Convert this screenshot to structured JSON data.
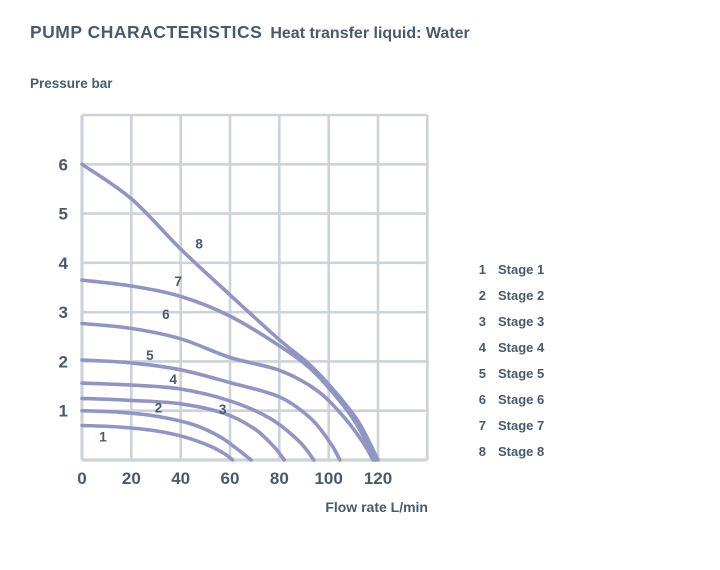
{
  "header": {
    "title": "PUMP CHARACTERISTICS",
    "subtitle": "Heat transfer liquid: Water"
  },
  "colors": {
    "ink": "#475b6c",
    "curve": "#9095c4",
    "grid": "#cdd3db",
    "background": "#ffffff"
  },
  "legend": {
    "items": [
      {
        "num": "1",
        "label": "Stage 1"
      },
      {
        "num": "2",
        "label": "Stage 2"
      },
      {
        "num": "3",
        "label": "Stage 3"
      },
      {
        "num": "4",
        "label": "Stage 4"
      },
      {
        "num": "5",
        "label": "Stage 5"
      },
      {
        "num": "6",
        "label": "Stage 6"
      },
      {
        "num": "7",
        "label": "Stage 7"
      },
      {
        "num": "8",
        "label": "Stage 8"
      }
    ]
  },
  "chart_data": {
    "type": "line",
    "title": "PUMP CHARACTERISTICS",
    "subtitle": "Heat transfer liquid: Water",
    "xlabel": "Flow rate L/min",
    "ylabel": "Pressure bar",
    "xlim": [
      0,
      140
    ],
    "ylim": [
      0,
      7
    ],
    "x_grid_step": 20,
    "y_grid_step": 1,
    "grid": true,
    "legend_position": "right",
    "xticks": [
      0,
      20,
      40,
      60,
      80,
      100,
      120
    ],
    "yticks": [
      1,
      2,
      3,
      4,
      5,
      6
    ],
    "series": [
      {
        "name": "Stage 1",
        "label": "1",
        "label_pos": [
          8.5,
          0.47
        ],
        "points": [
          [
            0,
            0.7
          ],
          [
            15,
            0.67
          ],
          [
            30,
            0.59
          ],
          [
            42,
            0.46
          ],
          [
            52,
            0.28
          ],
          [
            58,
            0.12
          ],
          [
            61,
            0
          ]
        ]
      },
      {
        "name": "Stage 2",
        "label": "2",
        "label_pos": [
          31,
          1.06
        ],
        "points": [
          [
            0,
            1.0
          ],
          [
            15,
            0.97
          ],
          [
            30,
            0.89
          ],
          [
            45,
            0.72
          ],
          [
            56,
            0.47
          ],
          [
            64,
            0.18
          ],
          [
            68.5,
            0
          ]
        ]
      },
      {
        "name": "Stage 3",
        "label": "3",
        "label_pos": [
          57,
          1.02
        ],
        "points": [
          [
            0,
            1.25
          ],
          [
            20,
            1.21
          ],
          [
            40,
            1.14
          ],
          [
            58,
            0.94
          ],
          [
            70,
            0.63
          ],
          [
            78,
            0.26
          ],
          [
            82,
            0
          ]
        ]
      },
      {
        "name": "Stage 4",
        "label": "4",
        "label_pos": [
          37,
          1.63
        ],
        "points": [
          [
            0,
            1.56
          ],
          [
            20,
            1.52
          ],
          [
            40,
            1.44
          ],
          [
            60,
            1.2
          ],
          [
            76,
            0.85
          ],
          [
            88,
            0.38
          ],
          [
            94,
            0
          ]
        ]
      },
      {
        "name": "Stage 5",
        "label": "5",
        "label_pos": [
          27.5,
          2.12
        ],
        "points": [
          [
            0,
            2.03
          ],
          [
            20,
            1.97
          ],
          [
            40,
            1.83
          ],
          [
            60,
            1.57
          ],
          [
            80,
            1.28
          ],
          [
            93,
            0.83
          ],
          [
            101,
            0.32
          ],
          [
            104.5,
            0
          ]
        ]
      },
      {
        "name": "Stage 6",
        "label": "6",
        "label_pos": [
          34,
          2.95
        ],
        "points": [
          [
            0,
            2.77
          ],
          [
            20,
            2.67
          ],
          [
            40,
            2.46
          ],
          [
            60,
            2.08
          ],
          [
            80,
            1.82
          ],
          [
            95,
            1.42
          ],
          [
            106,
            0.88
          ],
          [
            114,
            0.35
          ],
          [
            118,
            0
          ]
        ]
      },
      {
        "name": "Stage 7",
        "label": "7",
        "label_pos": [
          39,
          3.62
        ],
        "points": [
          [
            0,
            3.65
          ],
          [
            20,
            3.53
          ],
          [
            40,
            3.32
          ],
          [
            60,
            2.92
          ],
          [
            80,
            2.32
          ],
          [
            92,
            1.88
          ],
          [
            102,
            1.35
          ],
          [
            111,
            0.75
          ],
          [
            119,
            0
          ]
        ]
      },
      {
        "name": "Stage 8",
        "label": "8",
        "label_pos": [
          47.5,
          4.38
        ],
        "points": [
          [
            0,
            6.0
          ],
          [
            20,
            5.3
          ],
          [
            40,
            4.28
          ],
          [
            60,
            3.35
          ],
          [
            80,
            2.44
          ],
          [
            92,
            1.95
          ],
          [
            102,
            1.42
          ],
          [
            112,
            0.78
          ],
          [
            120,
            0
          ]
        ]
      }
    ]
  }
}
